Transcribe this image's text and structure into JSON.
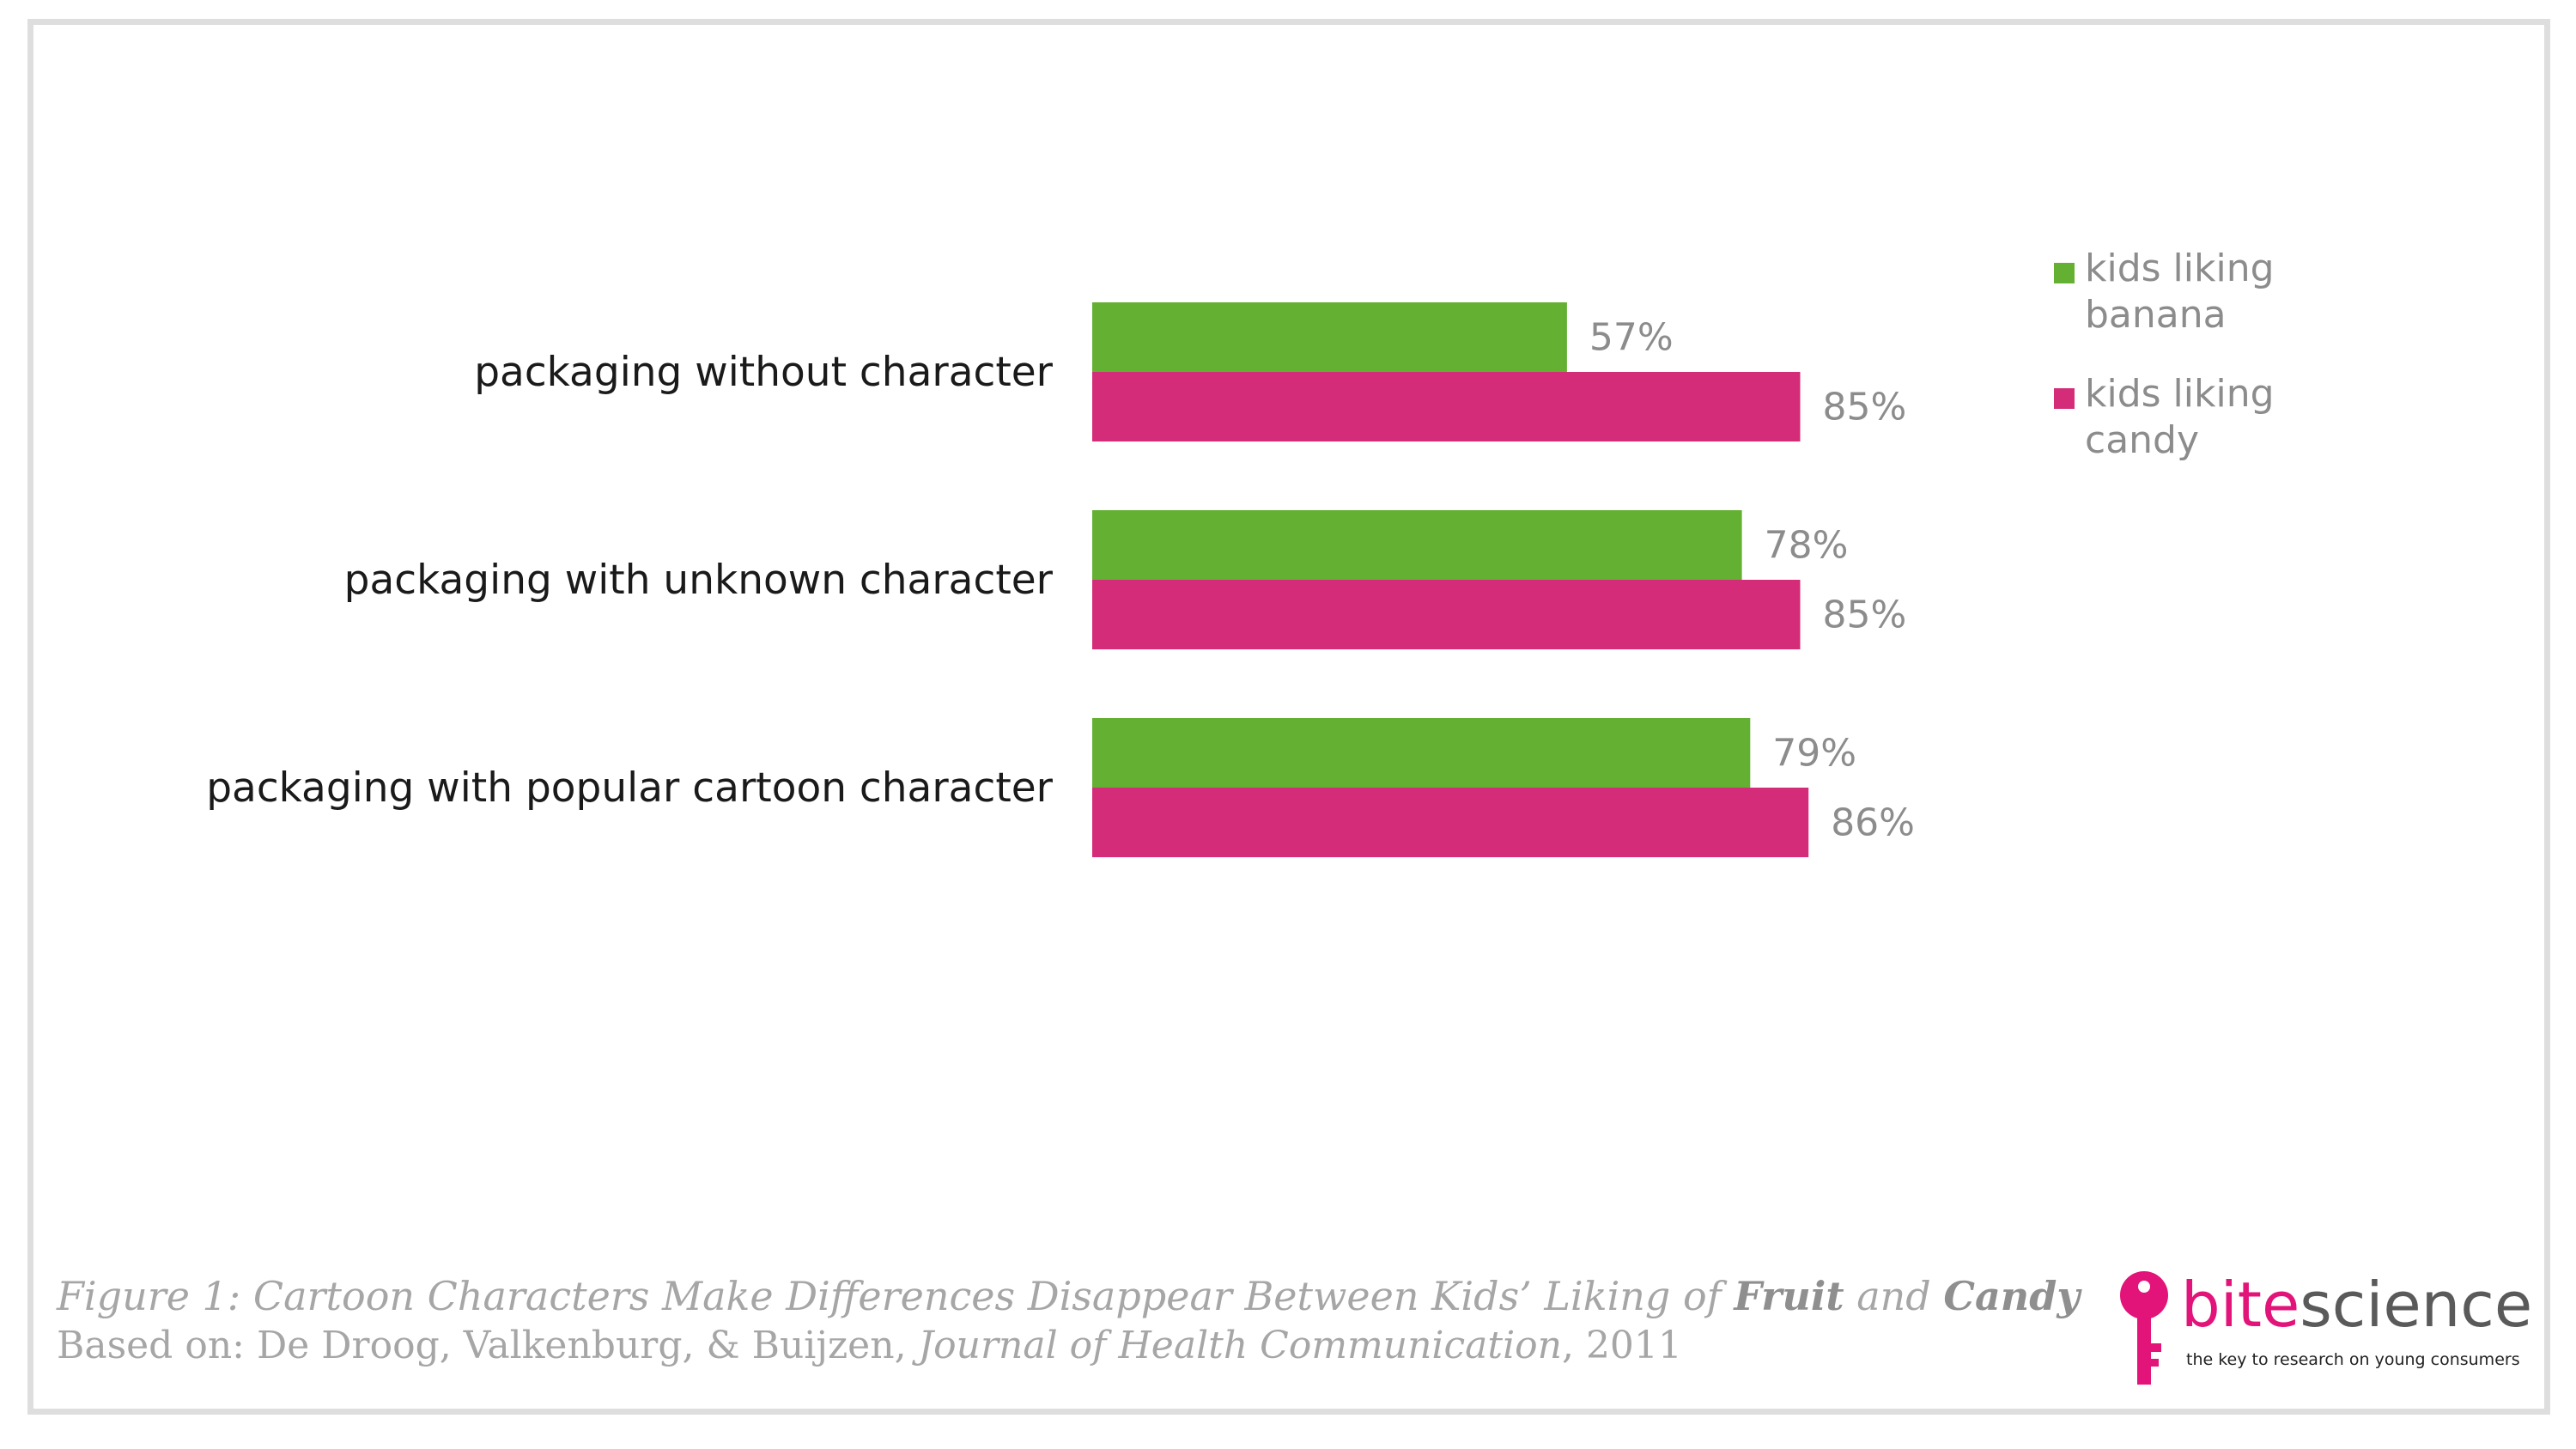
{
  "chart_data": {
    "type": "bar",
    "orientation": "horizontal",
    "categories": [
      "packaging without character",
      "packaging with unknown character",
      "packaging with popular cartoon character"
    ],
    "series": [
      {
        "name": "kids liking banana",
        "values": [
          57,
          78,
          79
        ],
        "color": "#64b032"
      },
      {
        "name": "kids liking candy",
        "values": [
          85,
          85,
          86
        ],
        "color": "#d42c78"
      }
    ],
    "value_labels": [
      [
        "57%",
        "78%",
        "79%"
      ],
      [
        "85%",
        "85%",
        "86%"
      ]
    ],
    "xlim": [
      0,
      100
    ],
    "grid": false,
    "legend": "top-right",
    "title": "",
    "xlabel": "",
    "ylabel": ""
  },
  "legend": {
    "items": [
      {
        "label": "kids liking banana",
        "color": "#64b032"
      },
      {
        "label": "kids liking candy",
        "color": "#d42c78"
      }
    ]
  },
  "caption": {
    "title_prefix": "Figure 1: Cartoon Characters Make Differences Disappear Between Kids’ Liking of ",
    "title_fruit": "Fruit",
    "title_and": " and ",
    "title_candy": "Candy",
    "source_prefix": "Based on: De Droog, Valkenburg, & Buijzen, ",
    "source_journal": "Journal of Health Communication",
    "source_suffix": ", 2011"
  },
  "logo": {
    "word_bite": "bite",
    "word_science": "science",
    "tagline": "the key to research on young consumers",
    "accent_color": "#e2147a"
  }
}
